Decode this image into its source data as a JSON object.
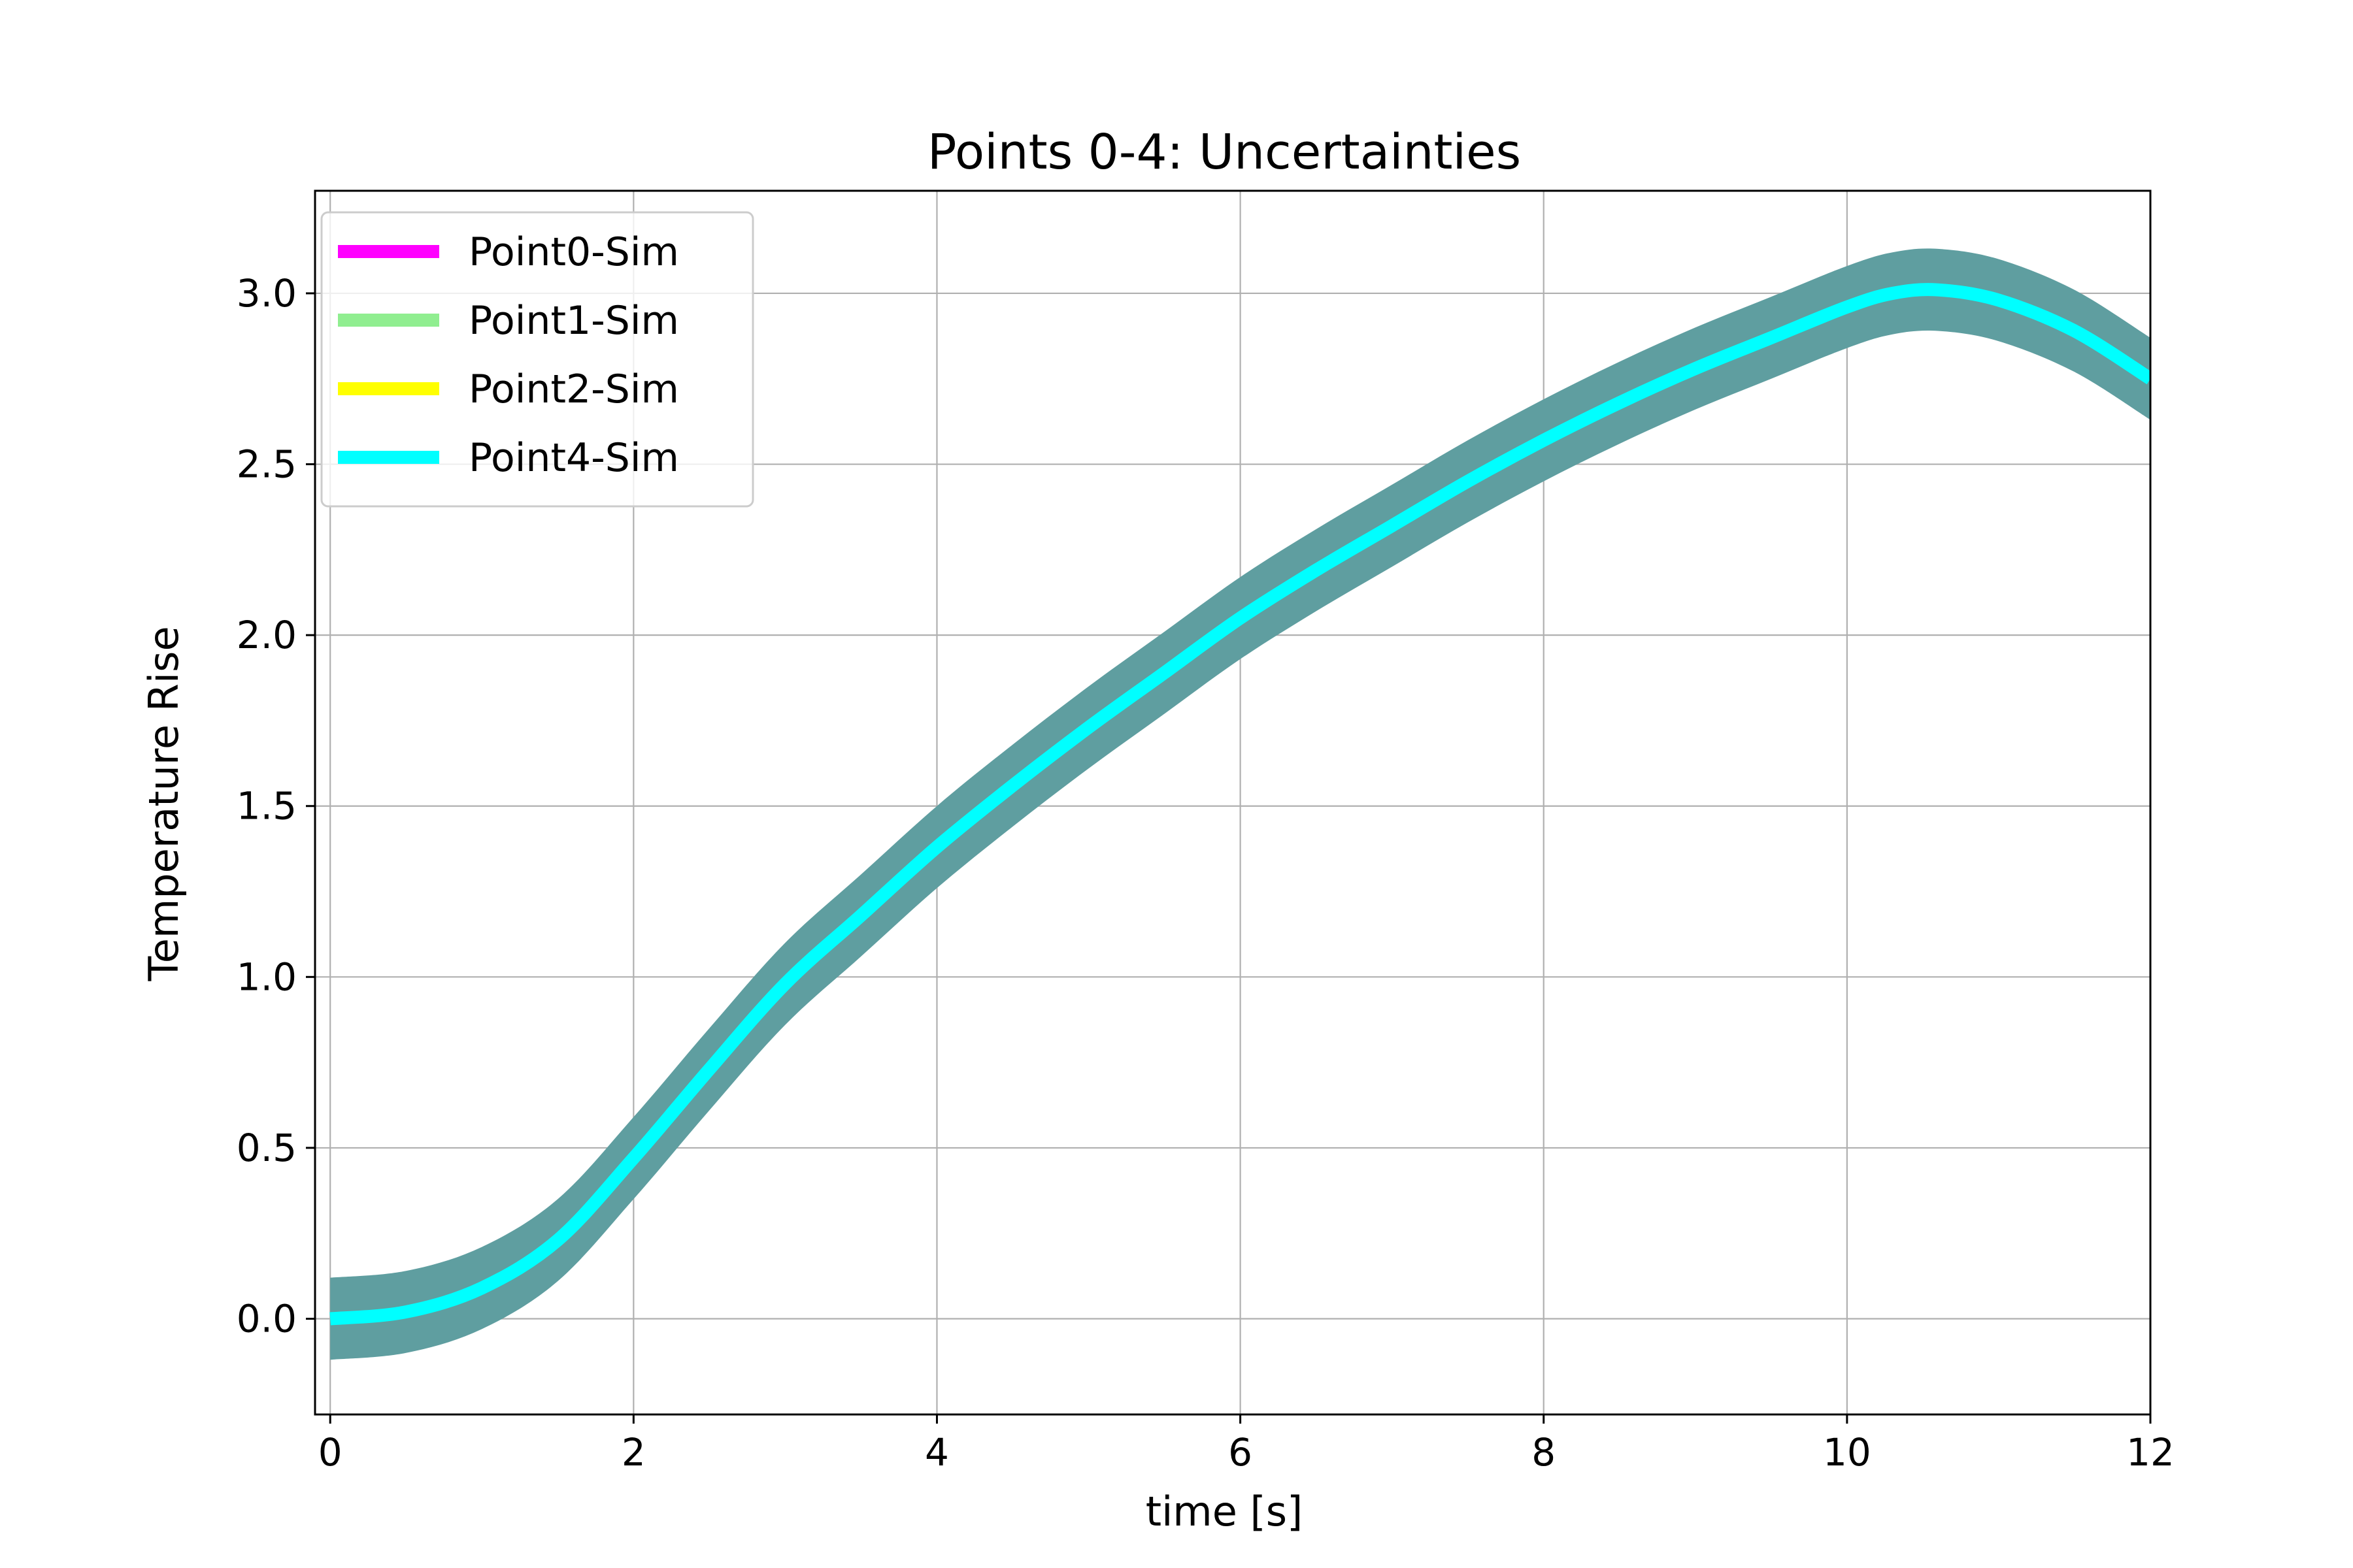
{
  "chart_data": {
    "type": "line",
    "title": "Points 0-4: Uncertainties",
    "xlabel": "time [s]",
    "ylabel": "Temperature Rise",
    "xlim": [
      -0.1,
      12
    ],
    "ylim": [
      -0.28,
      3.3
    ],
    "xticks": [
      0,
      2,
      4,
      6,
      8,
      10,
      12
    ],
    "xtick_labels": [
      "0",
      "2",
      "4",
      "6",
      "8",
      "10",
      "12"
    ],
    "yticks": [
      0.0,
      0.5,
      1.0,
      1.5,
      2.0,
      2.5,
      3.0
    ],
    "ytick_labels": [
      "0.0",
      "0.5",
      "1.0",
      "1.5",
      "2.0",
      "2.5",
      "3.0"
    ],
    "grid": true,
    "legend_position": "upper-left",
    "uncertainty_band": {
      "half_width": 0.12,
      "color": "#5f9ea0"
    },
    "x": [
      0,
      0.5,
      1,
      1.5,
      2,
      2.5,
      3,
      3.5,
      4,
      4.5,
      5,
      5.5,
      6,
      6.5,
      7,
      7.5,
      8,
      8.5,
      9,
      9.5,
      10,
      10.3,
      10.6,
      11,
      11.5,
      12
    ],
    "series": [
      {
        "name": "Point0-Sim",
        "color": "#ff00ff",
        "values": null
      },
      {
        "name": "Point1-Sim",
        "color": "#90ee90",
        "values": null
      },
      {
        "name": "Point2-Sim",
        "color": "#ffff00",
        "values": null
      },
      {
        "name": "Point4-Sim",
        "color": "#00ffff",
        "values": [
          0.0,
          0.02,
          0.09,
          0.23,
          0.47,
          0.73,
          0.98,
          1.18,
          1.38,
          1.56,
          1.73,
          1.89,
          2.05,
          2.19,
          2.32,
          2.45,
          2.57,
          2.68,
          2.78,
          2.87,
          2.96,
          3.0,
          3.01,
          2.98,
          2.89,
          2.75
        ]
      }
    ]
  }
}
